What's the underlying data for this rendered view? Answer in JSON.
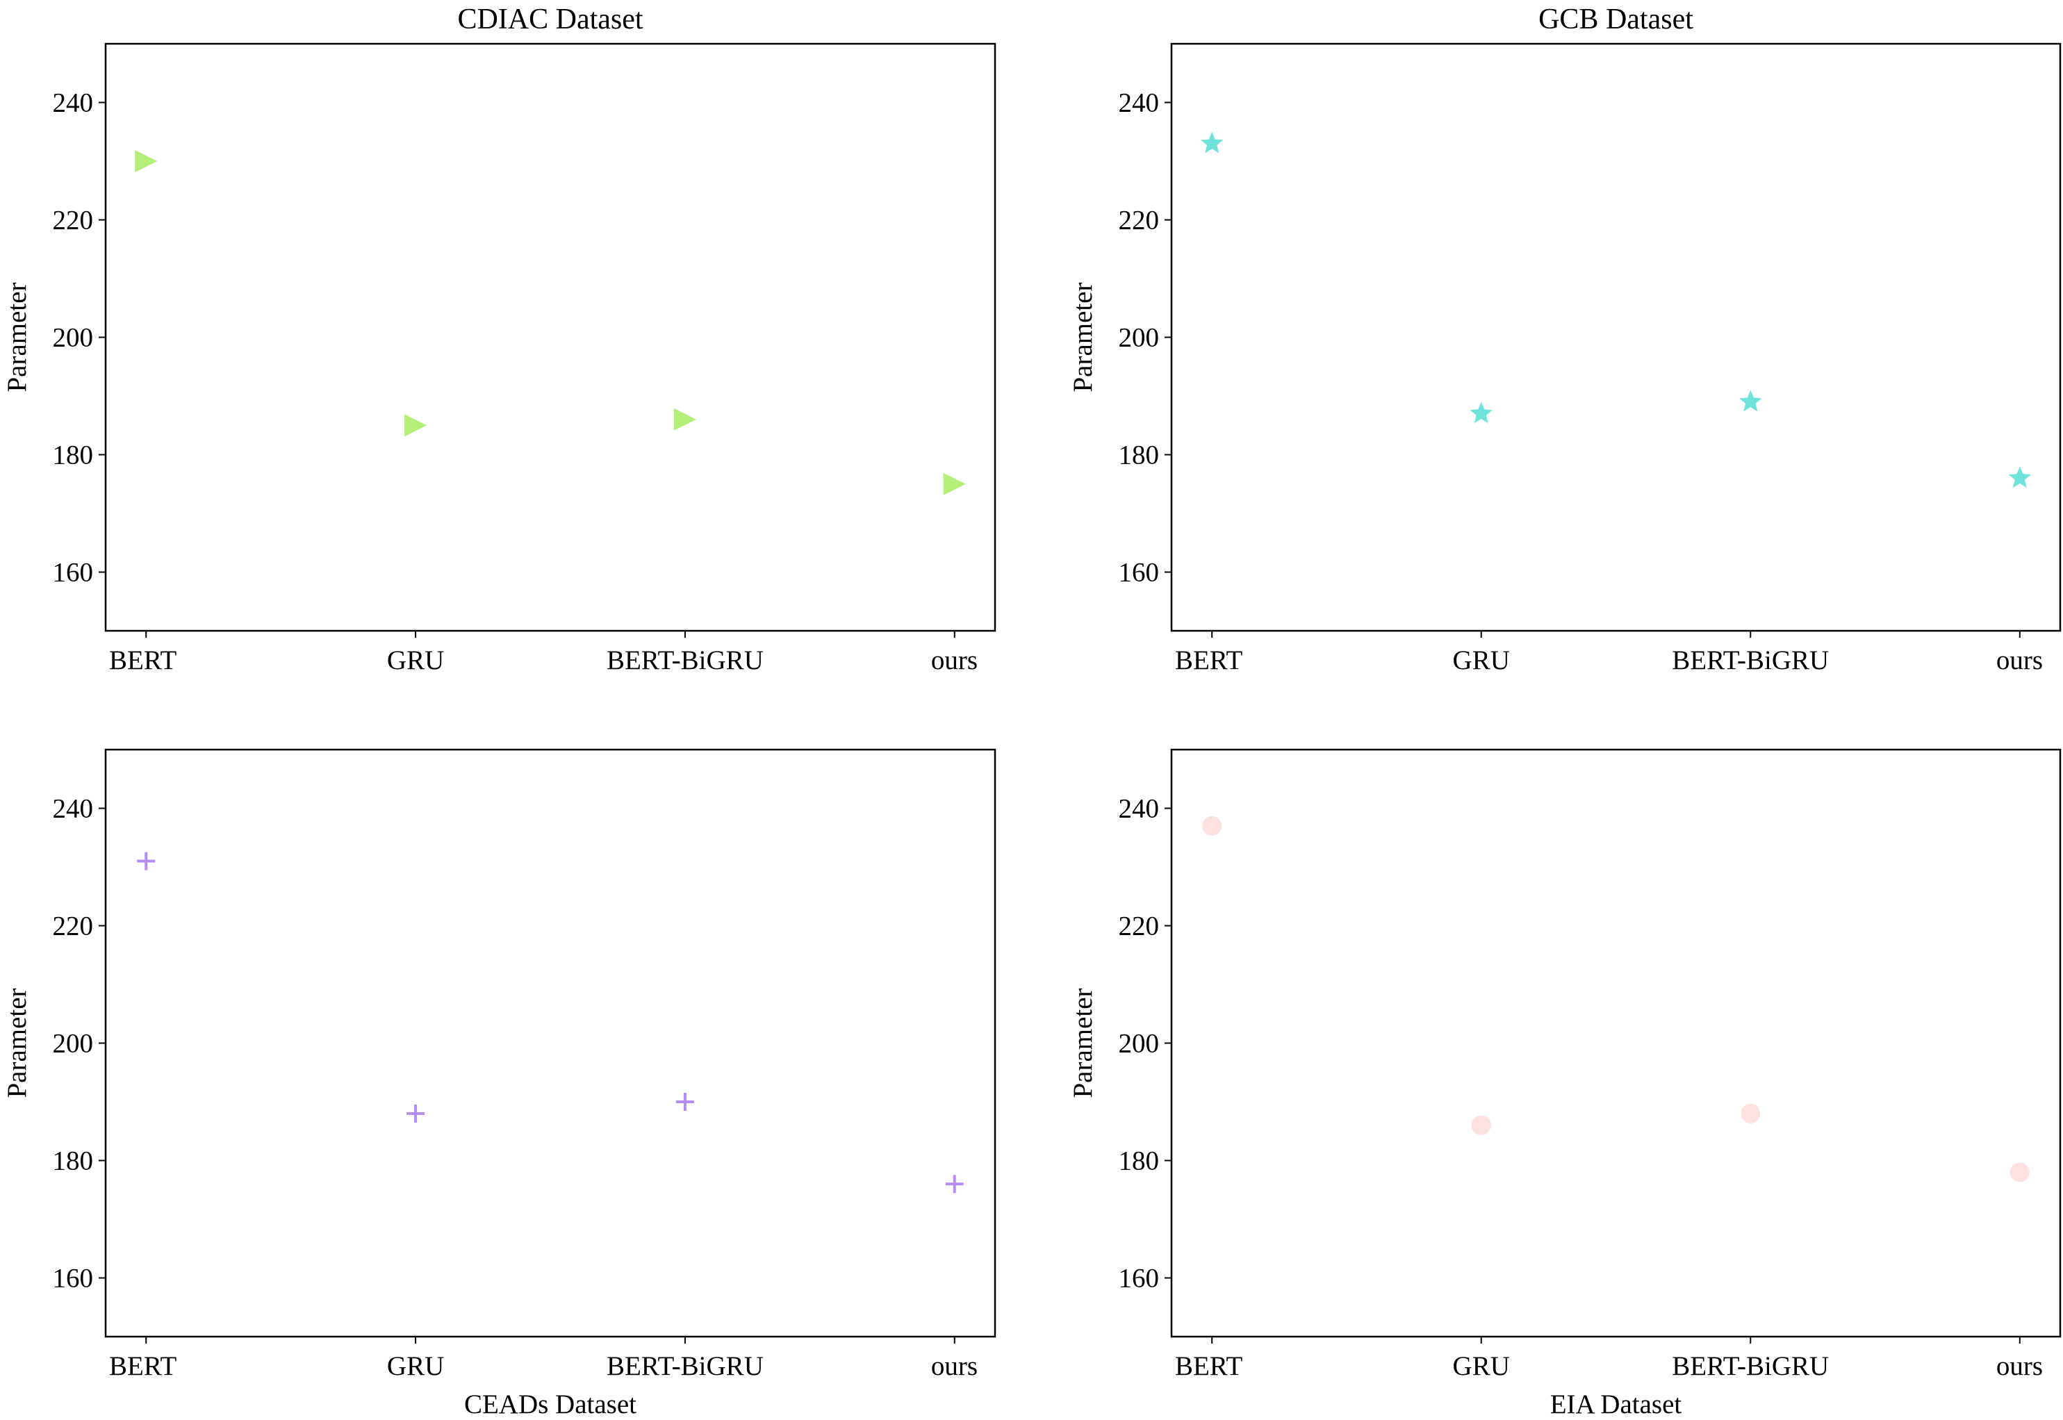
{
  "chart_data": [
    {
      "type": "scatter",
      "title": "CDIAC Dataset",
      "xlabel": "",
      "ylabel": "Parameter",
      "categories": [
        "BERT",
        "GRU",
        "BERT-BiGRU",
        "ours"
      ],
      "values": [
        230,
        185,
        186,
        175
      ],
      "ylim": [
        150,
        250
      ],
      "yticks": [
        160,
        180,
        200,
        220,
        240
      ],
      "marker": "triangle-right",
      "color": "#b3f07a",
      "grid": false
    },
    {
      "type": "scatter",
      "title": "GCB Dataset",
      "xlabel": "",
      "ylabel": "Parameter",
      "categories": [
        "BERT",
        "GRU",
        "BERT-BiGRU",
        "ours"
      ],
      "values": [
        233,
        187,
        189,
        176
      ],
      "ylim": [
        150,
        250
      ],
      "yticks": [
        160,
        180,
        200,
        220,
        240
      ],
      "marker": "star",
      "color": "#6de3da",
      "grid": false
    },
    {
      "type": "scatter",
      "title": "",
      "xlabel": "CEADs Dataset",
      "ylabel": "Parameter",
      "categories": [
        "BERT",
        "GRU",
        "BERT-BiGRU",
        "ours"
      ],
      "values": [
        231,
        188,
        190,
        176
      ],
      "ylim": [
        150,
        250
      ],
      "yticks": [
        160,
        180,
        200,
        220,
        240
      ],
      "marker": "plus",
      "color": "#b58cf0",
      "grid": false
    },
    {
      "type": "scatter",
      "title": "",
      "xlabel": "EIA Dataset",
      "ylabel": "Parameter",
      "categories": [
        "BERT",
        "GRU",
        "BERT-BiGRU",
        "ours"
      ],
      "values": [
        237,
        186,
        188,
        178
      ],
      "ylim": [
        150,
        250
      ],
      "yticks": [
        160,
        180,
        200,
        220,
        240
      ],
      "marker": "circle",
      "color": "#fde0e0",
      "grid": false
    }
  ]
}
